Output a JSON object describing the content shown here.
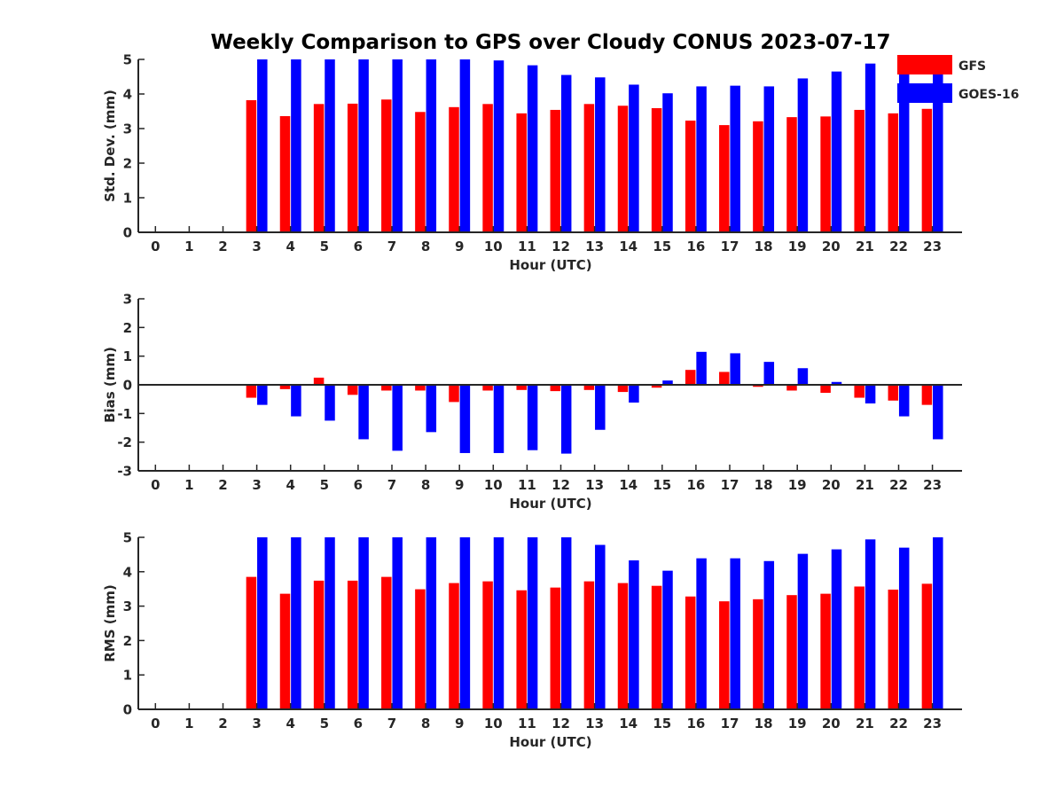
{
  "title": "Weekly Comparison to GPS over Cloudy CONUS 2023-07-17",
  "legend": {
    "entries": [
      {
        "label": "GFS",
        "color": "#ff0000"
      },
      {
        "label": "GOES-16",
        "color": "#0000ff"
      }
    ],
    "placement": "top-right"
  },
  "chart_data": [
    {
      "type": "bar",
      "ylabel": "Std. Dev. (mm)",
      "xlabel": "Hour (UTC)",
      "ylim": [
        0,
        5
      ],
      "yticks": [
        0,
        1,
        2,
        3,
        4,
        5
      ],
      "categories": [
        "0",
        "1",
        "2",
        "3",
        "4",
        "5",
        "6",
        "7",
        "8",
        "9",
        "10",
        "11",
        "12",
        "13",
        "14",
        "15",
        "16",
        "17",
        "18",
        "19",
        "20",
        "21",
        "22",
        "23"
      ],
      "series": [
        {
          "name": "GFS",
          "color": "#ff0000",
          "values": [
            null,
            null,
            null,
            3.82,
            3.36,
            3.71,
            3.72,
            3.84,
            3.48,
            3.62,
            3.71,
            3.44,
            3.54,
            3.71,
            3.66,
            3.59,
            3.23,
            3.1,
            3.21,
            3.33,
            3.35,
            3.54,
            3.44,
            3.57
          ]
        },
        {
          "name": "GOES-16",
          "color": "#0000ff",
          "values": [
            null,
            null,
            null,
            5.0,
            5.0,
            5.0,
            5.0,
            5.0,
            5.0,
            5.0,
            4.97,
            4.83,
            4.55,
            4.48,
            4.27,
            4.02,
            4.22,
            4.24,
            4.22,
            4.45,
            4.65,
            4.88,
            4.57,
            4.62
          ]
        }
      ]
    },
    {
      "type": "bar",
      "ylabel": "Bias (mm)",
      "xlabel": "Hour (UTC)",
      "ylim": [
        -3,
        3
      ],
      "yticks": [
        -3,
        -2,
        -1,
        0,
        1,
        2,
        3
      ],
      "zero_line": true,
      "categories": [
        "0",
        "1",
        "2",
        "3",
        "4",
        "5",
        "6",
        "7",
        "8",
        "9",
        "10",
        "11",
        "12",
        "13",
        "14",
        "15",
        "16",
        "17",
        "18",
        "19",
        "20",
        "21",
        "22",
        "23"
      ],
      "series": [
        {
          "name": "GFS",
          "color": "#ff0000",
          "values": [
            null,
            null,
            null,
            -0.45,
            -0.15,
            0.25,
            -0.35,
            -0.2,
            -0.2,
            -0.6,
            -0.2,
            -0.18,
            -0.22,
            -0.18,
            -0.25,
            -0.1,
            0.52,
            0.45,
            -0.07,
            -0.2,
            -0.28,
            -0.45,
            -0.55,
            -0.7
          ]
        },
        {
          "name": "GOES-16",
          "color": "#0000ff",
          "values": [
            null,
            null,
            null,
            -0.7,
            -1.1,
            -1.25,
            -1.9,
            -2.3,
            -1.65,
            -2.38,
            -2.38,
            -2.28,
            -2.4,
            -1.57,
            -0.62,
            0.15,
            1.15,
            1.1,
            0.8,
            0.58,
            0.1,
            -0.65,
            -1.1,
            -1.9
          ]
        }
      ]
    },
    {
      "type": "bar",
      "ylabel": "RMS (mm)",
      "xlabel": "Hour (UTC)",
      "ylim": [
        0,
        5
      ],
      "yticks": [
        0,
        1,
        2,
        3,
        4,
        5
      ],
      "categories": [
        "0",
        "1",
        "2",
        "3",
        "4",
        "5",
        "6",
        "7",
        "8",
        "9",
        "10",
        "11",
        "12",
        "13",
        "14",
        "15",
        "16",
        "17",
        "18",
        "19",
        "20",
        "21",
        "22",
        "23"
      ],
      "series": [
        {
          "name": "GFS",
          "color": "#ff0000",
          "values": [
            null,
            null,
            null,
            3.85,
            3.36,
            3.74,
            3.74,
            3.85,
            3.49,
            3.67,
            3.72,
            3.46,
            3.54,
            3.72,
            3.67,
            3.59,
            3.28,
            3.14,
            3.2,
            3.32,
            3.36,
            3.57,
            3.48,
            3.65
          ]
        },
        {
          "name": "GOES-16",
          "color": "#0000ff",
          "values": [
            null,
            null,
            null,
            5.0,
            5.0,
            5.0,
            5.0,
            5.0,
            5.0,
            5.0,
            5.0,
            5.0,
            5.0,
            4.78,
            4.33,
            4.03,
            4.39,
            4.39,
            4.31,
            4.52,
            4.65,
            4.94,
            4.7,
            5.0
          ]
        }
      ]
    }
  ]
}
